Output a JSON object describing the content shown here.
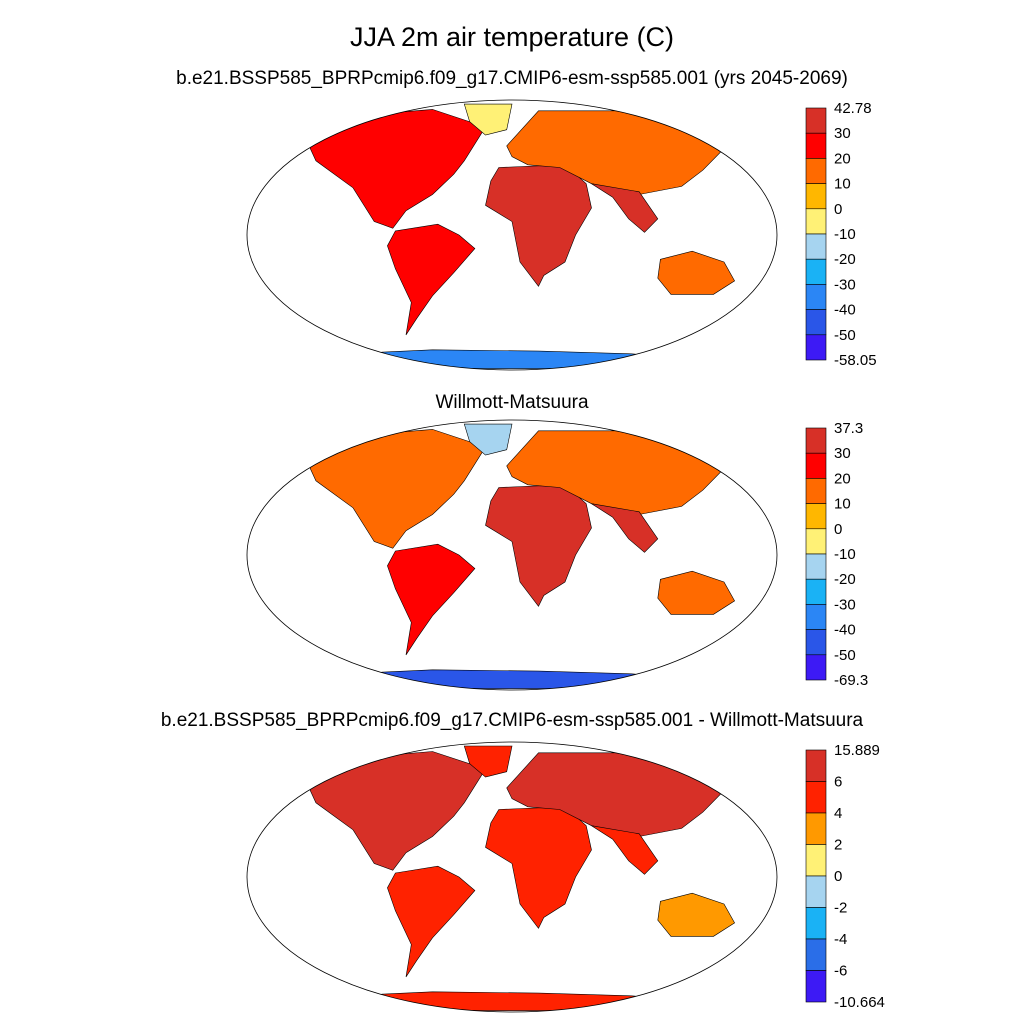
{
  "title": "JJA 2m air temperature (C)",
  "colors": {
    "ocean": "#ffffff",
    "outline": "#000000"
  },
  "panels": [
    {
      "subtitle": "b.e21.BSSP585_BPRPcmip6.f09_g17.CMIP6-esm-ssp585.001 (yrs 2045-2069)",
      "colorbar": {
        "labels": [
          "42.78",
          "30",
          "20",
          "10",
          "0",
          "-10",
          "-20",
          "-30",
          "-40",
          "-50",
          "-58.05"
        ],
        "colors": [
          "#d73027",
          "#ff0000",
          "#ff6a00",
          "#ffb700",
          "#fff176",
          "#a6d4f0",
          "#1ab2f5",
          "#2b86f5",
          "#2a56e8",
          "#3d1af5"
        ]
      },
      "regions": {
        "namerica": "#ff0000",
        "greenland": "#fff176",
        "samerica": "#ff0000",
        "africa": "#d73027",
        "eurasia": "#ff6a00",
        "southasia": "#d73027",
        "australia": "#ff6a00",
        "antarctica": "#2b86f5"
      }
    },
    {
      "subtitle": "Willmott-Matsuura",
      "colorbar": {
        "labels": [
          "37.3",
          "30",
          "20",
          "10",
          "0",
          "-10",
          "-20",
          "-30",
          "-40",
          "-50",
          "-69.3"
        ],
        "colors": [
          "#d73027",
          "#ff0000",
          "#ff6a00",
          "#ffb700",
          "#fff176",
          "#a6d4f0",
          "#1ab2f5",
          "#2b86f5",
          "#2a56e8",
          "#3d1af5"
        ]
      },
      "regions": {
        "namerica": "#ff6a00",
        "greenland": "#a6d4f0",
        "samerica": "#ff0000",
        "africa": "#d73027",
        "eurasia": "#ff6a00",
        "southasia": "#d73027",
        "australia": "#ff6a00",
        "antarctica": "#2a56e8"
      }
    },
    {
      "subtitle": "b.e21.BSSP585_BPRPcmip6.f09_g17.CMIP6-esm-ssp585.001 - Willmott-Matsuura",
      "colorbar": {
        "labels": [
          "15.889",
          "6",
          "4",
          "2",
          "0",
          "-2",
          "-4",
          "-6",
          "-10.664"
        ],
        "colors": [
          "#d73027",
          "#ff2200",
          "#ff9900",
          "#fff176",
          "#a6d4f0",
          "#1ab2f5",
          "#2a6ee8",
          "#3d1af5"
        ]
      },
      "regions": {
        "namerica": "#d73027",
        "greenland": "#ff2200",
        "samerica": "#ff2200",
        "africa": "#ff2200",
        "eurasia": "#d73027",
        "southasia": "#ff2200",
        "australia": "#ff9900",
        "antarctica": "#ff2200"
      }
    }
  ]
}
